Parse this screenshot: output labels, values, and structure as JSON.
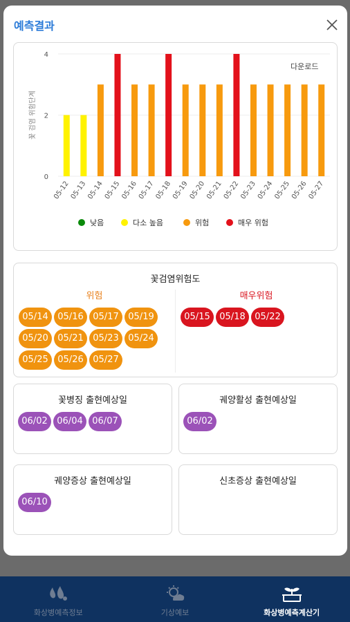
{
  "modal": {
    "title": "예측결과"
  },
  "chart_data": {
    "type": "bar",
    "categories": [
      "05-12",
      "05-13",
      "05-14",
      "05-15",
      "05-16",
      "05-17",
      "05-18",
      "05-19",
      "05-20",
      "05-21",
      "05-22",
      "05-23",
      "05-24",
      "05-25",
      "05-26",
      "05-27"
    ],
    "values": [
      2,
      2,
      3,
      4,
      3,
      3,
      4,
      3,
      3,
      3,
      4,
      3,
      3,
      3,
      3,
      3
    ],
    "bar_colors": [
      "#fff200",
      "#fff200",
      "#f79a0e",
      "#e3111b",
      "#f79a0e",
      "#f79a0e",
      "#e3111b",
      "#f79a0e",
      "#f79a0e",
      "#f79a0e",
      "#e3111b",
      "#f79a0e",
      "#f79a0e",
      "#f79a0e",
      "#f79a0e",
      "#f79a0e"
    ],
    "ylabel": "꽃 검염 위험단계",
    "ylim": [
      0,
      4
    ],
    "yticks": [
      0,
      2,
      4
    ],
    "grid": true,
    "legend_position": "bottom",
    "legend": [
      {
        "label": "낮음",
        "color": "#0a8a0a"
      },
      {
        "label": "다소 높음",
        "color": "#fff200"
      },
      {
        "label": "위험",
        "color": "#f79a0e"
      },
      {
        "label": "매우 위험",
        "color": "#e3111b"
      }
    ]
  },
  "download_label": "다운로드",
  "risk_card": {
    "title": "꽃검염위험도",
    "warning": {
      "title": "위험",
      "color": "#e8801a",
      "dates": [
        "05/14",
        "05/16",
        "05/17",
        "05/19",
        "05/20",
        "05/21",
        "05/23",
        "05/24",
        "05/25",
        "05/26",
        "05/27"
      ]
    },
    "severe": {
      "title": "매우위험",
      "color": "#d9151f",
      "dates": [
        "05/15",
        "05/18",
        "05/22"
      ]
    }
  },
  "forecast_cards": [
    {
      "title": "꽃병징 출현예상일",
      "dates": [
        "06/02",
        "06/04",
        "06/07"
      ]
    },
    {
      "title": "궤양활성 출현예상일",
      "dates": [
        "06/02"
      ]
    },
    {
      "title": "궤양증상 출현예상일",
      "dates": [
        "06/10"
      ]
    },
    {
      "title": "신초증상 출현예상일",
      "dates": []
    }
  ],
  "bottom_nav": [
    {
      "label": "화상병예측정보",
      "icon": "fire-drops-icon",
      "active": false
    },
    {
      "label": "기상예보",
      "icon": "weather-icon",
      "active": false
    },
    {
      "label": "화상병예측계산기",
      "icon": "plant-calculator-icon",
      "active": true
    }
  ]
}
